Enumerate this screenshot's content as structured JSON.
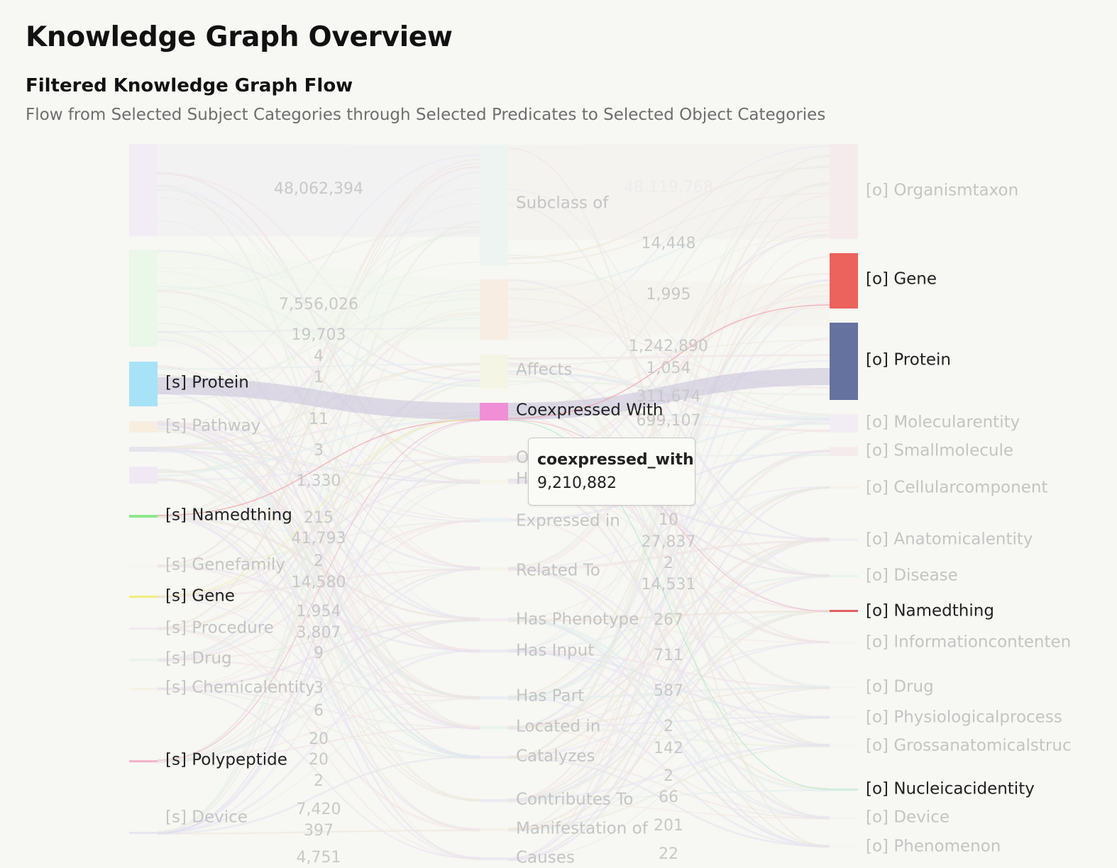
{
  "page": {
    "title": "Knowledge Graph Overview",
    "section_title": "Filtered Knowledge Graph Flow",
    "section_subtitle": "Flow from Selected Subject Categories through Selected Predicates to Selected Object Categories"
  },
  "tooltip": {
    "title": "coexpressed_with",
    "value": "9,210,882"
  },
  "sankey": {
    "subjects": [
      {
        "label": "",
        "color": "#f1eaf3",
        "highlight": false
      },
      {
        "label": "",
        "color": "#e8f7e6",
        "highlight": false
      },
      {
        "label": "[s] Protein",
        "color": "#a6e3f7",
        "highlight": true
      },
      {
        "label": "[s] Pathway",
        "color": "#f7ecdc",
        "highlight": false
      },
      {
        "label": "",
        "color": "#e2e2ea",
        "highlight": false
      },
      {
        "label": "",
        "color": "#efe6f2",
        "highlight": false
      },
      {
        "label": "[s] Namedthing",
        "color": "#8ce88c",
        "highlight": true
      },
      {
        "label": "[s] Genefamily",
        "color": "#f3f3f3",
        "highlight": false
      },
      {
        "label": "[s] Gene",
        "color": "#eef07a",
        "highlight": true
      },
      {
        "label": "[s] Procedure",
        "color": "#eee6f2",
        "highlight": false
      },
      {
        "label": "[s] Drug",
        "color": "#e6f3e6",
        "highlight": false
      },
      {
        "label": "[s] Chemicalentity",
        "color": "#f5f1e0",
        "highlight": false
      },
      {
        "label": "[s] Polypeptide",
        "color": "#f3b2cc",
        "highlight": true
      },
      {
        "label": "[s] Device",
        "color": "#e6e2f2",
        "highlight": false
      }
    ],
    "predicates": [
      {
        "label": "Subclass of",
        "color": "#ecf3f0",
        "highlight": false
      },
      {
        "label": "",
        "color": "#f7ebdf",
        "highlight": false
      },
      {
        "label": "Affects",
        "color": "#f5f5e2",
        "highlight": false
      },
      {
        "label": "Coexpressed With",
        "color": "#f08fd6",
        "highlight": true
      },
      {
        "label": "O",
        "color": "#f5e8e8",
        "highlight": false
      },
      {
        "label": "H",
        "color": "#f5f5e8",
        "highlight": false
      },
      {
        "label": "Expressed in",
        "color": "#eaf0f4",
        "highlight": false
      },
      {
        "label": "Related To",
        "color": "#f3f3ea",
        "highlight": false
      },
      {
        "label": "Has Phenotype",
        "color": "#f3eaf0",
        "highlight": false
      },
      {
        "label": "Has Input",
        "color": "#ece8f3",
        "highlight": false
      },
      {
        "label": "Has Part",
        "color": "#e8ecf3",
        "highlight": false
      },
      {
        "label": "Located in",
        "color": "#e8f3e8",
        "highlight": false
      },
      {
        "label": "Catalyzes",
        "color": "#ece8f3",
        "highlight": false
      },
      {
        "label": "Contributes To",
        "color": "#eae8f3",
        "highlight": false
      },
      {
        "label": "Manifestation of",
        "color": "#f3f0e6",
        "highlight": false
      },
      {
        "label": "Causes",
        "color": "#e8e8f3",
        "highlight": false
      }
    ],
    "objects": [
      {
        "label": "[o] Organismtaxon",
        "color": "#f5e9ea",
        "highlight": false
      },
      {
        "label": "[o] Gene",
        "color": "#ec625c",
        "highlight": true
      },
      {
        "label": "[o] Protein",
        "color": "#65719f",
        "highlight": true
      },
      {
        "label": "[o] Molecularentity",
        "color": "#f1eaf3",
        "highlight": false
      },
      {
        "label": "[o] Smallmolecule",
        "color": "#f5e9ea",
        "highlight": false
      },
      {
        "label": "[o] Cellularcomponent",
        "color": "#f5f1e6",
        "highlight": false
      },
      {
        "label": "[o] Anatomicalentity",
        "color": "#eeeef5",
        "highlight": false
      },
      {
        "label": "[o] Disease",
        "color": "#e6f3e6",
        "highlight": false
      },
      {
        "label": "[o] Namedthing",
        "color": "#e06060",
        "highlight": true
      },
      {
        "label": "[o] Informationcontenten",
        "color": "#f3f3f3",
        "highlight": false
      },
      {
        "label": "[o] Drug",
        "color": "#f3f3f3",
        "highlight": false
      },
      {
        "label": "[o] Physiologicalprocess",
        "color": "#f3f3f3",
        "highlight": false
      },
      {
        "label": "[o] Grossanatomicalstruc",
        "color": "#f3f3f3",
        "highlight": false
      },
      {
        "label": "[o] Nucleicacidentity",
        "color": "#cfeedd",
        "highlight": true
      },
      {
        "label": "[o] Device",
        "color": "#f3f3f3",
        "highlight": false
      },
      {
        "label": "[o] Phenomenon",
        "color": "#f3f3f3",
        "highlight": false
      }
    ],
    "left_link_values": [
      "48,062,394",
      "7,556,026",
      "19,703",
      "4",
      "1",
      "11",
      "3",
      "1,330",
      "215",
      "41,793",
      "2",
      "14,580",
      "1,954",
      "3,807",
      "9",
      "3",
      "6",
      "20",
      "20",
      "2",
      "7,420",
      "397",
      "4,751"
    ],
    "right_link_values": [
      "48,119,768",
      "14,448",
      "1,995",
      "1,242,890",
      "1,054",
      "311,674",
      "699,107",
      "10",
      "27,837",
      "2",
      "14,531",
      "267",
      "711",
      "587",
      "2",
      "142",
      "2",
      "66",
      "201",
      "22"
    ],
    "highlighted_flows": [
      {
        "from": "[s] Protein",
        "via": "Coexpressed With",
        "to": "[o] Protein",
        "color": "#c9c4dc"
      },
      {
        "from": "[s] Namedthing",
        "via": "Coexpressed With",
        "to": "[o] Gene",
        "color": "#f0a0a8"
      },
      {
        "from": "[s] Polypeptide",
        "via": "Coexpressed With",
        "to": "[o] Namedthing",
        "color": "#f0b8c8"
      },
      {
        "from": "[s] Gene",
        "via": "Coexpressed With",
        "to": "[o] Nucleicacidentity",
        "color": "#a8e8c0"
      }
    ]
  }
}
